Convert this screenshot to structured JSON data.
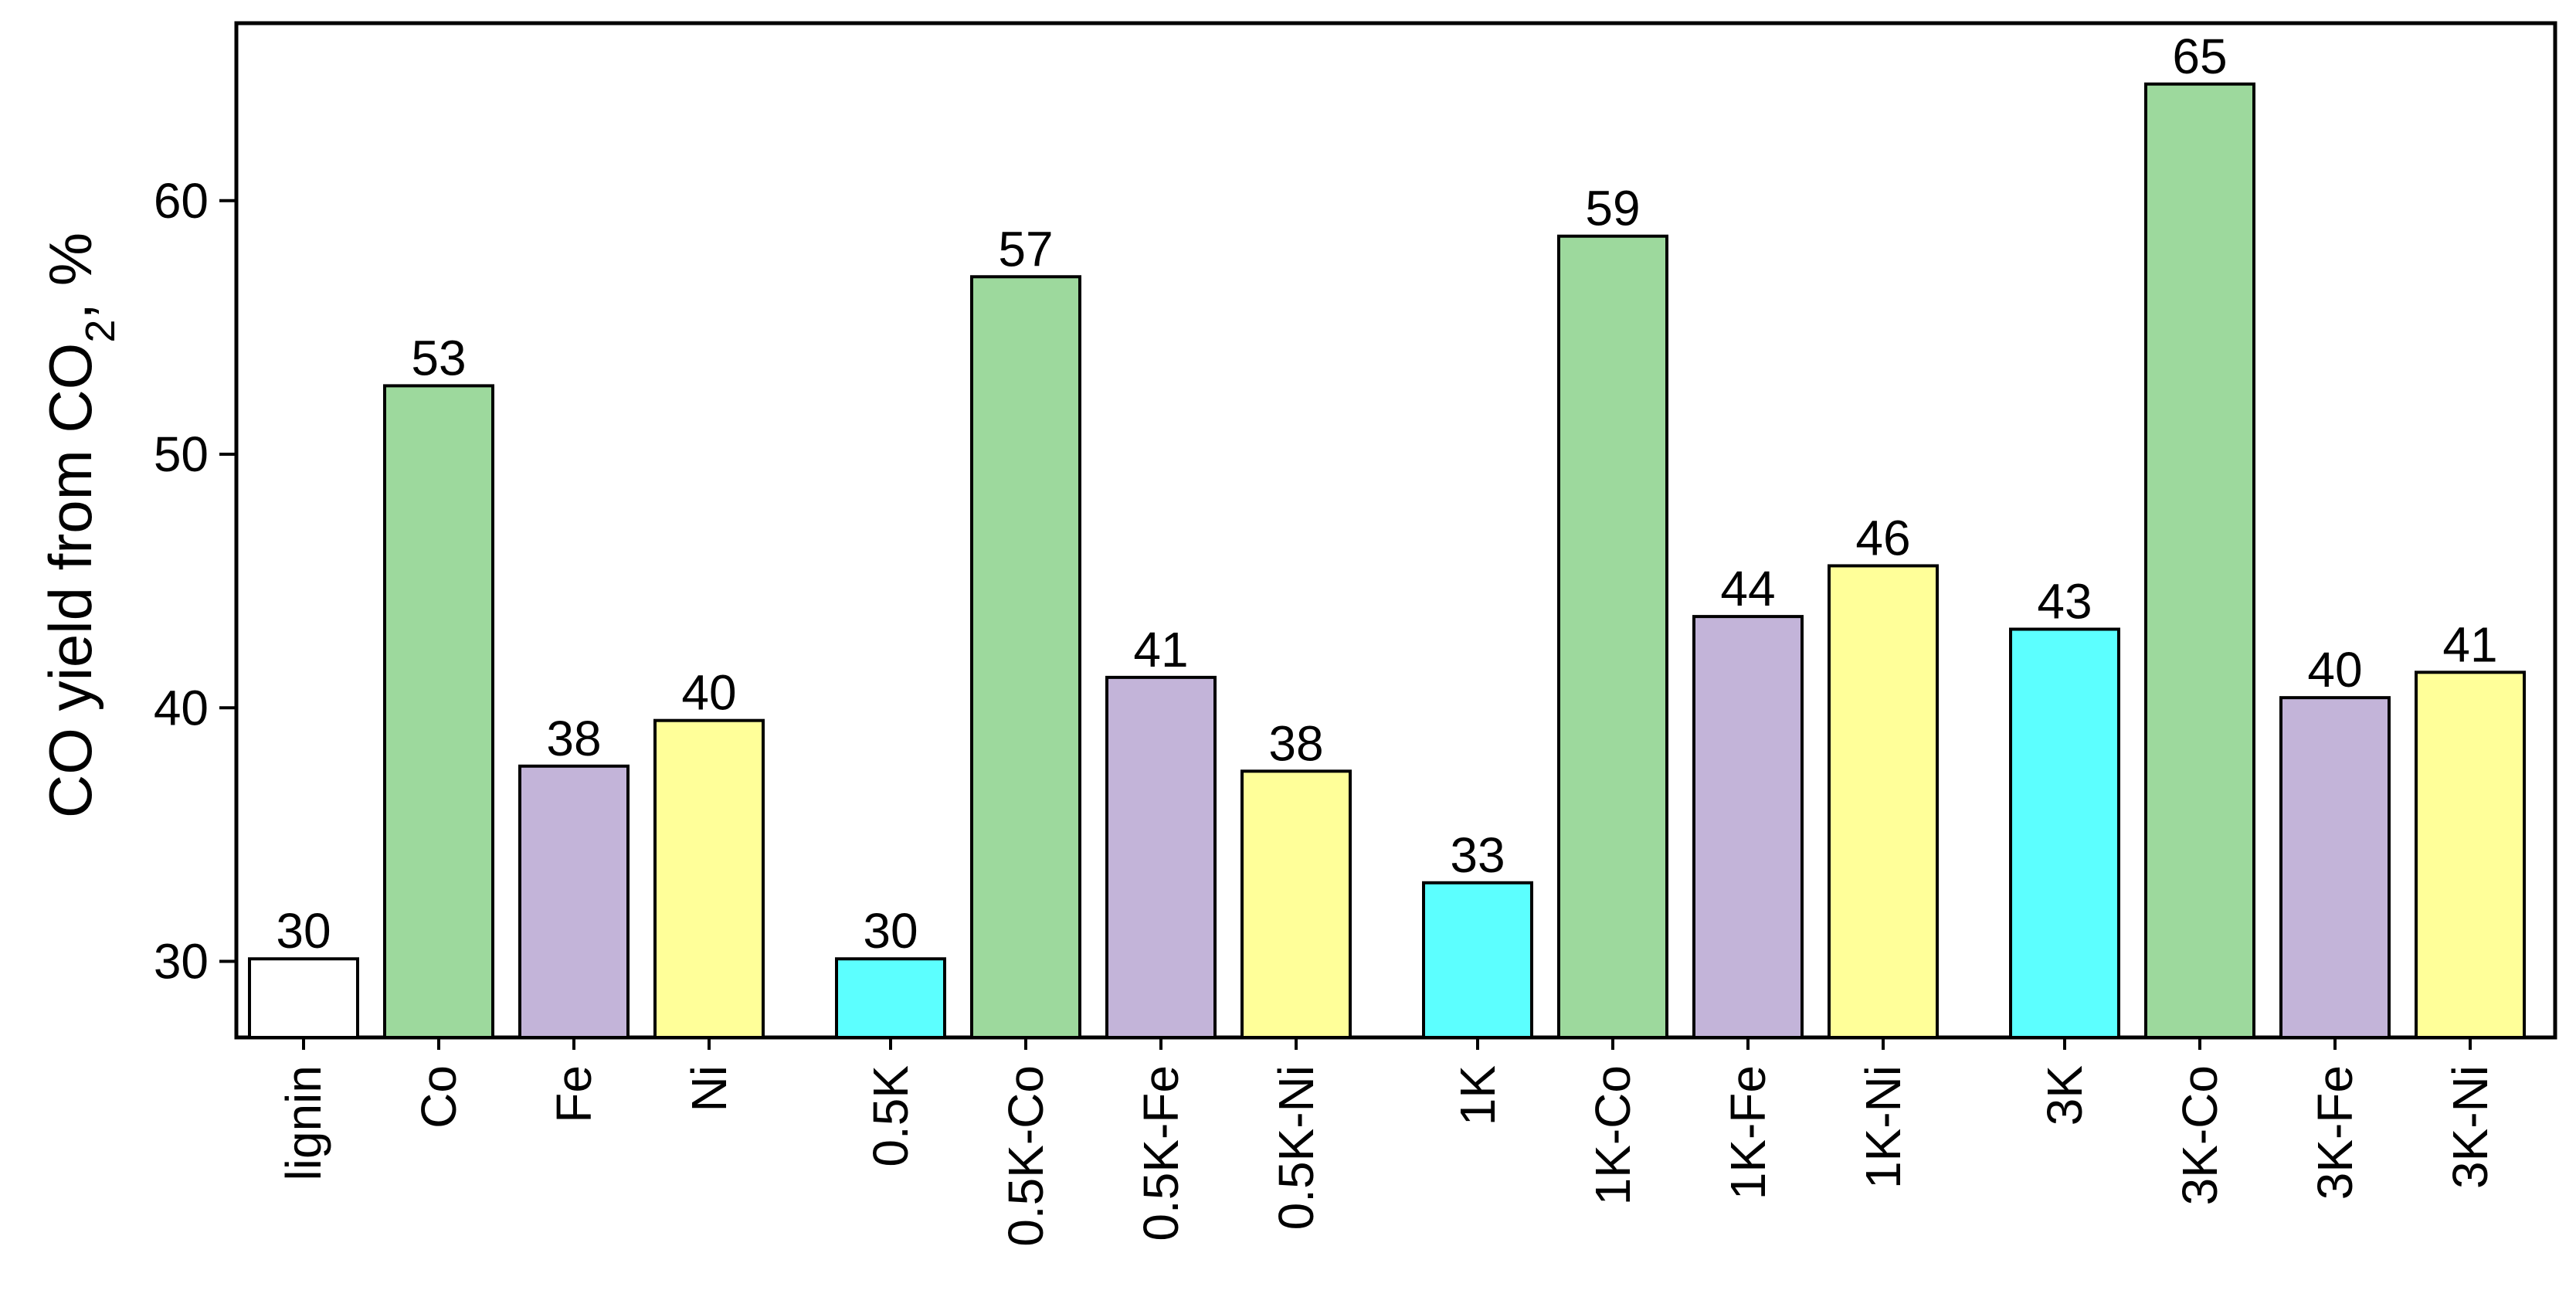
{
  "chart_data": {
    "type": "bar",
    "ylabel_main": "CO yield from CO",
    "ylabel_sub": "2",
    "ylabel_tail": ", %",
    "ylim": [
      27,
      67
    ],
    "yticks": [
      30,
      40,
      50,
      60
    ],
    "grid": false,
    "legend": "none",
    "categories": [
      "lignin",
      "Co",
      "Fe",
      "Ni",
      "0.5K",
      "0.5K-Co",
      "0.5K-Fe",
      "0.5K-Ni",
      "1K",
      "1K-Co",
      "1K-Fe",
      "1K-Ni",
      "3K",
      "3K-Co",
      "3K-Fe",
      "3K-Ni"
    ],
    "values": [
      30.1,
      52.7,
      37.7,
      39.5,
      30.1,
      57.0,
      41.2,
      37.5,
      33.1,
      58.6,
      43.6,
      45.6,
      43.1,
      64.6,
      40.4,
      41.4
    ],
    "data_labels": [
      "30",
      "53",
      "38",
      "40",
      "30",
      "57",
      "41",
      "38",
      "33",
      "59",
      "44",
      "46",
      "43",
      "65",
      "40",
      "41"
    ],
    "groups": [
      0,
      0,
      0,
      0,
      1,
      1,
      1,
      1,
      2,
      2,
      2,
      2,
      3,
      3,
      3,
      3
    ],
    "bar_colors": [
      "#ffffff",
      "#9dd99d",
      "#c3b4d9",
      "#ffff99",
      "#5cffff",
      "#9dd99d",
      "#c3b4d9",
      "#ffff99",
      "#5cffff",
      "#9dd99d",
      "#c3b4d9",
      "#ffff99",
      "#5cffff",
      "#9dd99d",
      "#c3b4d9",
      "#ffff99"
    ]
  }
}
